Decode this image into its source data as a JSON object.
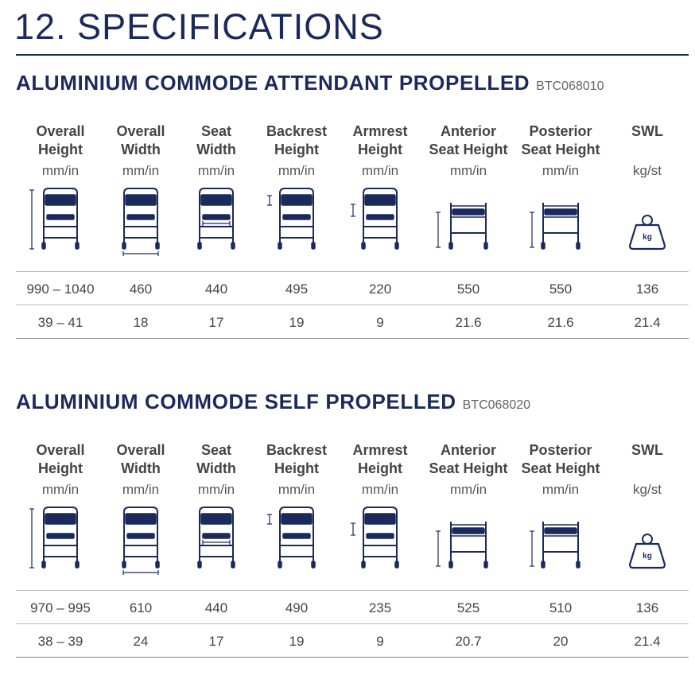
{
  "title": "12. SPECIFICATIONS",
  "sections": [
    {
      "name": "ALUMINIUM COMMODE ATTENDANT PROPELLED",
      "code": "BTC068010",
      "columns": [
        {
          "header": [
            "Overall",
            "Height"
          ],
          "unit": "mm/in"
        },
        {
          "header": [
            "Overall",
            "Width"
          ],
          "unit": "mm/in"
        },
        {
          "header": [
            "Seat",
            "Width"
          ],
          "unit": "mm/in"
        },
        {
          "header": [
            "Backrest",
            "Height"
          ],
          "unit": "mm/in"
        },
        {
          "header": [
            "Armrest",
            "Height"
          ],
          "unit": "mm/in"
        },
        {
          "header": [
            "Anterior",
            "Seat Height"
          ],
          "unit": "mm/in"
        },
        {
          "header": [
            "Posterior",
            "Seat Height"
          ],
          "unit": "mm/in"
        },
        {
          "header": [
            "SWL"
          ],
          "unit": "kg/st"
        }
      ],
      "weight_icon_text": "kg",
      "rows": [
        [
          "990 – 1040",
          "460",
          "440",
          "495",
          "220",
          "550",
          "550",
          "136"
        ],
        [
          "39 – 41",
          "18",
          "17",
          "19",
          "9",
          "21.6",
          "21.6",
          "21.4"
        ]
      ]
    },
    {
      "name": "ALUMINIUM COMMODE SELF PROPELLED",
      "code": "BTC068020",
      "columns": [
        {
          "header": [
            "Overall",
            "Height"
          ],
          "unit": "mm/in"
        },
        {
          "header": [
            "Overall",
            "Width"
          ],
          "unit": "mm/in"
        },
        {
          "header": [
            "Seat",
            "Width"
          ],
          "unit": "mm/in"
        },
        {
          "header": [
            "Backrest",
            "Height"
          ],
          "unit": "mm/in"
        },
        {
          "header": [
            "Armrest",
            "Height"
          ],
          "unit": "mm/in"
        },
        {
          "header": [
            "Anterior",
            "Seat Height"
          ],
          "unit": "mm/in"
        },
        {
          "header": [
            "Posterior",
            "Seat Height"
          ],
          "unit": "mm/in"
        },
        {
          "header": [
            "SWL"
          ],
          "unit": "kg/st"
        }
      ],
      "weight_icon_text": "kg",
      "rows": [
        [
          "970 – 995",
          "610",
          "440",
          "490",
          "235",
          "525",
          "510",
          "136"
        ],
        [
          "38 – 39",
          "24",
          "17",
          "19",
          "9",
          "20.7",
          "20",
          "21.4"
        ]
      ]
    }
  ]
}
